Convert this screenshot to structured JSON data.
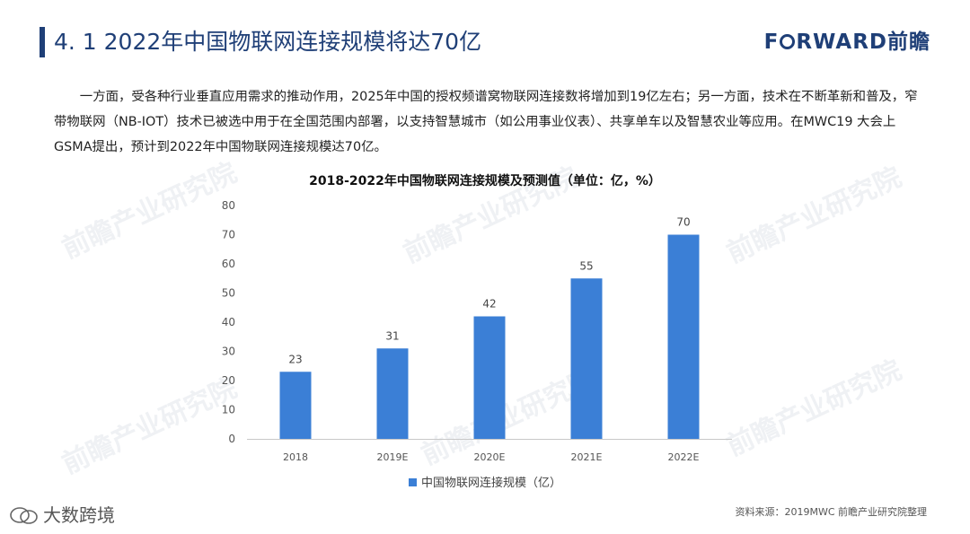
{
  "header": {
    "title": "4. 1  2022年中国物联网连接规模将达70亿",
    "brand_prefix": "F",
    "brand_suffix": "RWARD前瞻"
  },
  "paragraph": "一方面，受各种行业垂直应用需求的推动作用，2025年中国的授权频谱窝物联网连接数将增加到19亿左右；另一方面，技术在不断革新和普及，窄带物联网（NB-IOT）技术已被选中用于在全国范围内部署，以支持智慧城市（如公用事业仪表）、共享单车以及智慧农业等应用。在MWC19 大会上GSMA提出，预计到2022年中国物联网连接规模达70亿。",
  "watermark": "前瞻产业研究院",
  "chart_data": {
    "type": "bar",
    "title": "2018-2022年中国物联网连接规模及预测值（单位：亿，%）",
    "categories": [
      "2018",
      "2019E",
      "2020E",
      "2021E",
      "2022E"
    ],
    "series": [
      {
        "name": "中国物联网连接规模（亿）",
        "values": [
          23,
          31,
          42,
          55,
          70
        ]
      }
    ],
    "ylim": [
      0,
      80
    ],
    "yticks": [
      0,
      10,
      20,
      30,
      40,
      50,
      60,
      70,
      80
    ],
    "legend_position": "bottom",
    "grid": false,
    "bar_color": "#3b7fd6"
  },
  "footer": {
    "source": "资料来源：2019MWC 前瞻产业研究院整理",
    "wechat_label": "大数跨境"
  }
}
